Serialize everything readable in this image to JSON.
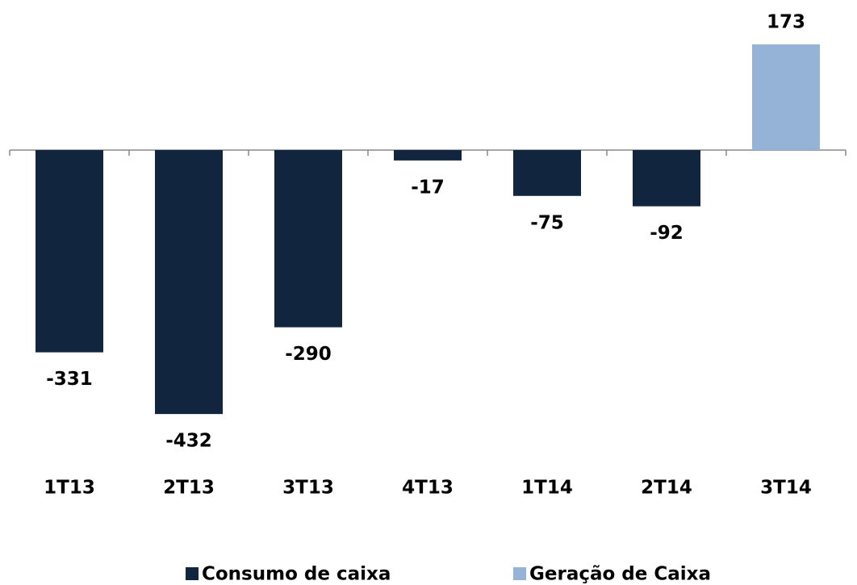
{
  "chart_data": {
    "type": "bar",
    "categories": [
      "1T13",
      "2T13",
      "3T13",
      "4T13",
      "1T14",
      "2T14",
      "3T14"
    ],
    "series": [
      {
        "name": "Consumo de caixa",
        "color": "#12253f",
        "values": [
          -331,
          -432,
          -290,
          -17,
          -75,
          -92,
          null
        ]
      },
      {
        "name": "Geração de Caixa",
        "color": "#95b3d7",
        "values": [
          null,
          null,
          null,
          null,
          null,
          null,
          173
        ]
      }
    ],
    "legend": "bottom"
  }
}
